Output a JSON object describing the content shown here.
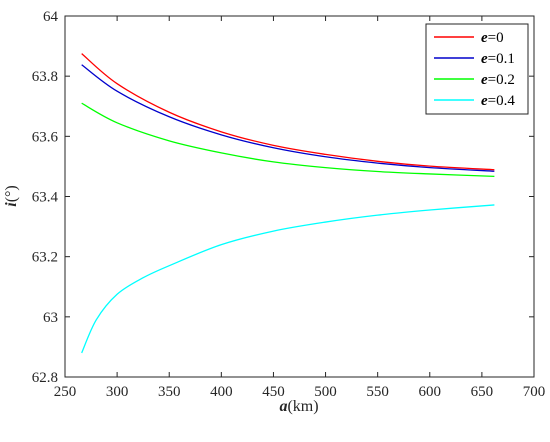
{
  "chart_data": {
    "type": "line",
    "xlabel": {
      "var": "a",
      "unit": "(km)"
    },
    "ylabel": {
      "var": "i",
      "unit": "(°)"
    },
    "xlim": [
      250,
      700
    ],
    "ylim": [
      62.8,
      64
    ],
    "xticks": [
      "250",
      "300",
      "350",
      "400",
      "450",
      "500",
      "550",
      "600",
      "650",
      "700"
    ],
    "yticks": [
      "62.8",
      "63",
      "63.2",
      "63.4",
      "63.6",
      "63.8",
      "64"
    ],
    "grid": false,
    "legend_position": "top-right",
    "series": [
      {
        "name": {
          "var": "e",
          "val": "=0"
        },
        "color": "#ff0000",
        "x": [
          266,
          300,
          350,
          400,
          450,
          500,
          550,
          600,
          662
        ],
        "y": [
          63.875,
          63.775,
          63.68,
          63.615,
          63.57,
          63.54,
          63.517,
          63.501,
          63.489
        ]
      },
      {
        "name": {
          "var": "e",
          "val": "=0.1"
        },
        "color": "#0000cc",
        "x": [
          266,
          300,
          350,
          400,
          450,
          500,
          550,
          600,
          662
        ],
        "y": [
          63.838,
          63.75,
          63.665,
          63.605,
          63.562,
          63.532,
          63.511,
          63.496,
          63.484
        ]
      },
      {
        "name": {
          "var": "e",
          "val": "=0.2"
        },
        "color": "#00ff00",
        "x": [
          266,
          300,
          350,
          400,
          450,
          500,
          550,
          600,
          662
        ],
        "y": [
          63.71,
          63.645,
          63.585,
          63.545,
          63.515,
          63.496,
          63.483,
          63.475,
          63.467
        ]
      },
      {
        "name": {
          "var": "e",
          "val": "=0.4"
        },
        "color": "#00ffff",
        "x": [
          266,
          280,
          300,
          325,
          350,
          400,
          450,
          500,
          550,
          600,
          662
        ],
        "y": [
          62.88,
          62.99,
          63.075,
          63.13,
          63.17,
          63.24,
          63.285,
          63.315,
          63.338,
          63.355,
          63.372
        ]
      }
    ]
  }
}
